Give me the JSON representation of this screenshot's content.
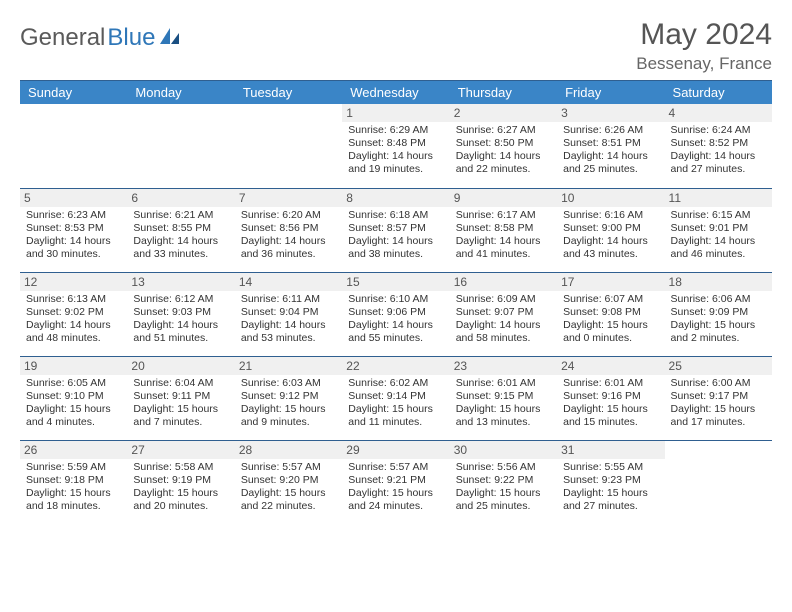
{
  "logo": {
    "word1": "General",
    "word2": "Blue"
  },
  "title": "May 2024",
  "location": "Bessenay, France",
  "colors": {
    "header_bg": "#3a85c7",
    "header_text": "#ffffff",
    "rule": "#2f5f90",
    "daynum_bg": "#f0f0f0",
    "text": "#333333",
    "logo_accent": "#2f77b8"
  },
  "weekdays": [
    "Sunday",
    "Monday",
    "Tuesday",
    "Wednesday",
    "Thursday",
    "Friday",
    "Saturday"
  ],
  "fonts": {
    "title_pt": 30,
    "location_pt": 17,
    "header_pt": 13,
    "daynum_pt": 12,
    "detail_pt": 10.5
  },
  "weeks": [
    [
      {
        "n": "",
        "sr": "",
        "ss": "",
        "dl1": "",
        "dl2": ""
      },
      {
        "n": "",
        "sr": "",
        "ss": "",
        "dl1": "",
        "dl2": ""
      },
      {
        "n": "",
        "sr": "",
        "ss": "",
        "dl1": "",
        "dl2": ""
      },
      {
        "n": "1",
        "sr": "Sunrise: 6:29 AM",
        "ss": "Sunset: 8:48 PM",
        "dl1": "Daylight: 14 hours",
        "dl2": "and 19 minutes."
      },
      {
        "n": "2",
        "sr": "Sunrise: 6:27 AM",
        "ss": "Sunset: 8:50 PM",
        "dl1": "Daylight: 14 hours",
        "dl2": "and 22 minutes."
      },
      {
        "n": "3",
        "sr": "Sunrise: 6:26 AM",
        "ss": "Sunset: 8:51 PM",
        "dl1": "Daylight: 14 hours",
        "dl2": "and 25 minutes."
      },
      {
        "n": "4",
        "sr": "Sunrise: 6:24 AM",
        "ss": "Sunset: 8:52 PM",
        "dl1": "Daylight: 14 hours",
        "dl2": "and 27 minutes."
      }
    ],
    [
      {
        "n": "5",
        "sr": "Sunrise: 6:23 AM",
        "ss": "Sunset: 8:53 PM",
        "dl1": "Daylight: 14 hours",
        "dl2": "and 30 minutes."
      },
      {
        "n": "6",
        "sr": "Sunrise: 6:21 AM",
        "ss": "Sunset: 8:55 PM",
        "dl1": "Daylight: 14 hours",
        "dl2": "and 33 minutes."
      },
      {
        "n": "7",
        "sr": "Sunrise: 6:20 AM",
        "ss": "Sunset: 8:56 PM",
        "dl1": "Daylight: 14 hours",
        "dl2": "and 36 minutes."
      },
      {
        "n": "8",
        "sr": "Sunrise: 6:18 AM",
        "ss": "Sunset: 8:57 PM",
        "dl1": "Daylight: 14 hours",
        "dl2": "and 38 minutes."
      },
      {
        "n": "9",
        "sr": "Sunrise: 6:17 AM",
        "ss": "Sunset: 8:58 PM",
        "dl1": "Daylight: 14 hours",
        "dl2": "and 41 minutes."
      },
      {
        "n": "10",
        "sr": "Sunrise: 6:16 AM",
        "ss": "Sunset: 9:00 PM",
        "dl1": "Daylight: 14 hours",
        "dl2": "and 43 minutes."
      },
      {
        "n": "11",
        "sr": "Sunrise: 6:15 AM",
        "ss": "Sunset: 9:01 PM",
        "dl1": "Daylight: 14 hours",
        "dl2": "and 46 minutes."
      }
    ],
    [
      {
        "n": "12",
        "sr": "Sunrise: 6:13 AM",
        "ss": "Sunset: 9:02 PM",
        "dl1": "Daylight: 14 hours",
        "dl2": "and 48 minutes."
      },
      {
        "n": "13",
        "sr": "Sunrise: 6:12 AM",
        "ss": "Sunset: 9:03 PM",
        "dl1": "Daylight: 14 hours",
        "dl2": "and 51 minutes."
      },
      {
        "n": "14",
        "sr": "Sunrise: 6:11 AM",
        "ss": "Sunset: 9:04 PM",
        "dl1": "Daylight: 14 hours",
        "dl2": "and 53 minutes."
      },
      {
        "n": "15",
        "sr": "Sunrise: 6:10 AM",
        "ss": "Sunset: 9:06 PM",
        "dl1": "Daylight: 14 hours",
        "dl2": "and 55 minutes."
      },
      {
        "n": "16",
        "sr": "Sunrise: 6:09 AM",
        "ss": "Sunset: 9:07 PM",
        "dl1": "Daylight: 14 hours",
        "dl2": "and 58 minutes."
      },
      {
        "n": "17",
        "sr": "Sunrise: 6:07 AM",
        "ss": "Sunset: 9:08 PM",
        "dl1": "Daylight: 15 hours",
        "dl2": "and 0 minutes."
      },
      {
        "n": "18",
        "sr": "Sunrise: 6:06 AM",
        "ss": "Sunset: 9:09 PM",
        "dl1": "Daylight: 15 hours",
        "dl2": "and 2 minutes."
      }
    ],
    [
      {
        "n": "19",
        "sr": "Sunrise: 6:05 AM",
        "ss": "Sunset: 9:10 PM",
        "dl1": "Daylight: 15 hours",
        "dl2": "and 4 minutes."
      },
      {
        "n": "20",
        "sr": "Sunrise: 6:04 AM",
        "ss": "Sunset: 9:11 PM",
        "dl1": "Daylight: 15 hours",
        "dl2": "and 7 minutes."
      },
      {
        "n": "21",
        "sr": "Sunrise: 6:03 AM",
        "ss": "Sunset: 9:12 PM",
        "dl1": "Daylight: 15 hours",
        "dl2": "and 9 minutes."
      },
      {
        "n": "22",
        "sr": "Sunrise: 6:02 AM",
        "ss": "Sunset: 9:14 PM",
        "dl1": "Daylight: 15 hours",
        "dl2": "and 11 minutes."
      },
      {
        "n": "23",
        "sr": "Sunrise: 6:01 AM",
        "ss": "Sunset: 9:15 PM",
        "dl1": "Daylight: 15 hours",
        "dl2": "and 13 minutes."
      },
      {
        "n": "24",
        "sr": "Sunrise: 6:01 AM",
        "ss": "Sunset: 9:16 PM",
        "dl1": "Daylight: 15 hours",
        "dl2": "and 15 minutes."
      },
      {
        "n": "25",
        "sr": "Sunrise: 6:00 AM",
        "ss": "Sunset: 9:17 PM",
        "dl1": "Daylight: 15 hours",
        "dl2": "and 17 minutes."
      }
    ],
    [
      {
        "n": "26",
        "sr": "Sunrise: 5:59 AM",
        "ss": "Sunset: 9:18 PM",
        "dl1": "Daylight: 15 hours",
        "dl2": "and 18 minutes."
      },
      {
        "n": "27",
        "sr": "Sunrise: 5:58 AM",
        "ss": "Sunset: 9:19 PM",
        "dl1": "Daylight: 15 hours",
        "dl2": "and 20 minutes."
      },
      {
        "n": "28",
        "sr": "Sunrise: 5:57 AM",
        "ss": "Sunset: 9:20 PM",
        "dl1": "Daylight: 15 hours",
        "dl2": "and 22 minutes."
      },
      {
        "n": "29",
        "sr": "Sunrise: 5:57 AM",
        "ss": "Sunset: 9:21 PM",
        "dl1": "Daylight: 15 hours",
        "dl2": "and 24 minutes."
      },
      {
        "n": "30",
        "sr": "Sunrise: 5:56 AM",
        "ss": "Sunset: 9:22 PM",
        "dl1": "Daylight: 15 hours",
        "dl2": "and 25 minutes."
      },
      {
        "n": "31",
        "sr": "Sunrise: 5:55 AM",
        "ss": "Sunset: 9:23 PM",
        "dl1": "Daylight: 15 hours",
        "dl2": "and 27 minutes."
      },
      {
        "n": "",
        "sr": "",
        "ss": "",
        "dl1": "",
        "dl2": ""
      }
    ]
  ]
}
